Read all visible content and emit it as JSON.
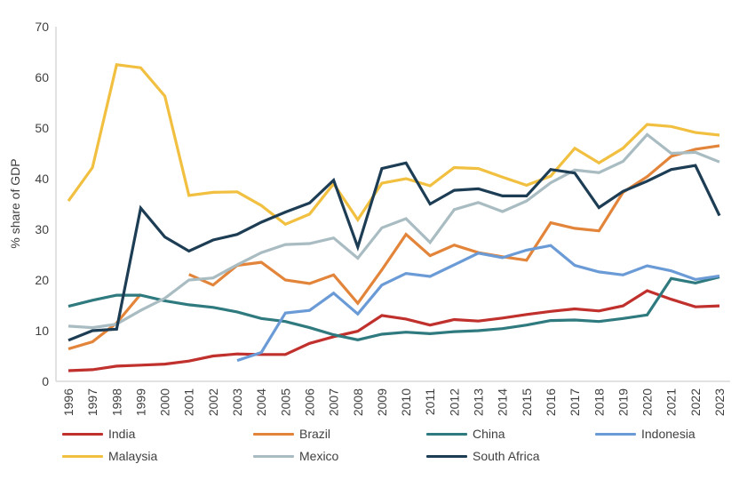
{
  "chart_data": {
    "type": "line",
    "title": "",
    "xlabel": "",
    "ylabel": "% share of GDP",
    "ylim": [
      0,
      70
    ],
    "yticks": [
      0,
      10,
      20,
      30,
      40,
      50,
      60,
      70
    ],
    "grid": false,
    "legend_position": "bottom",
    "x": [
      "1996",
      "1997",
      "1998",
      "1999",
      "2000",
      "2001",
      "2002",
      "2003",
      "2004",
      "2005",
      "2006",
      "2007",
      "2008",
      "2009",
      "2010",
      "2011",
      "2012",
      "2013",
      "2014",
      "2015",
      "2016",
      "2017",
      "2018",
      "2019",
      "2020",
      "2021",
      "2022",
      "2023"
    ],
    "series": [
      {
        "name": "India",
        "color": "#c0302c",
        "values": [
          2.1,
          2.3,
          3.0,
          3.2,
          3.4,
          4.0,
          5.0,
          5.4,
          5.3,
          5.3,
          7.5,
          8.8,
          9.9,
          13.0,
          12.3,
          11.1,
          12.2,
          11.9,
          12.5,
          13.2,
          13.8,
          14.3,
          13.9,
          14.9,
          17.9,
          16.2,
          14.7,
          14.9
        ]
      },
      {
        "name": "Brazil",
        "color": "#e2853a",
        "values": [
          6.4,
          7.8,
          11.5,
          17.2,
          null,
          21.1,
          19.0,
          22.9,
          23.5,
          20.0,
          19.3,
          21.0,
          15.4,
          22.0,
          29.0,
          24.8,
          26.9,
          25.4,
          24.6,
          23.9,
          31.3,
          30.2,
          29.7,
          37.3,
          40.4,
          44.4,
          45.8,
          46.5
        ]
      },
      {
        "name": "China",
        "color": "#2f7a7f",
        "values": [
          14.8,
          16.0,
          17.0,
          17.0,
          15.9,
          15.1,
          14.6,
          13.7,
          12.4,
          11.8,
          10.6,
          9.2,
          8.2,
          9.3,
          9.7,
          9.4,
          9.8,
          10.0,
          10.4,
          11.1,
          12.0,
          12.1,
          11.8,
          12.4,
          13.1,
          20.3,
          19.4,
          20.6
        ]
      },
      {
        "name": "Indonesia",
        "color": "#6b9bd6",
        "values": [
          null,
          null,
          null,
          null,
          null,
          null,
          null,
          4.1,
          5.7,
          13.5,
          14.0,
          17.4,
          13.3,
          19.0,
          21.3,
          20.7,
          23.0,
          25.3,
          24.4,
          25.9,
          26.8,
          22.9,
          21.6,
          21.0,
          22.8,
          21.8,
          20.1,
          20.8
        ]
      },
      {
        "name": "Malaysia",
        "color": "#f2c040",
        "values": [
          35.6,
          42.2,
          62.5,
          61.9,
          56.3,
          36.7,
          37.3,
          37.4,
          34.7,
          31.0,
          33.0,
          39.0,
          31.9,
          39.1,
          40.0,
          38.6,
          42.2,
          42.0,
          40.3,
          38.7,
          40.5,
          46.0,
          43.1,
          46.0,
          50.7,
          50.3,
          49.1,
          48.6
        ]
      },
      {
        "name": "Mexico",
        "color": "#a8bcc2",
        "values": [
          10.9,
          10.6,
          11.3,
          14.0,
          16.4,
          20.0,
          20.4,
          23.0,
          25.4,
          27.0,
          27.2,
          28.3,
          24.3,
          30.3,
          32.1,
          27.4,
          33.9,
          35.3,
          33.5,
          35.6,
          39.2,
          41.7,
          41.2,
          43.4,
          48.7,
          45.0,
          45.2,
          43.3
        ]
      },
      {
        "name": "South Africa",
        "color": "#1d3d55",
        "values": [
          8.1,
          10.0,
          10.3,
          34.2,
          28.5,
          25.7,
          27.9,
          29.0,
          31.4,
          33.4,
          35.2,
          39.7,
          26.5,
          42.0,
          43.1,
          35.0,
          37.7,
          38.0,
          36.6,
          36.6,
          41.8,
          41.1,
          34.3,
          37.5,
          39.5,
          41.8,
          42.6,
          32.7
        ]
      }
    ]
  }
}
